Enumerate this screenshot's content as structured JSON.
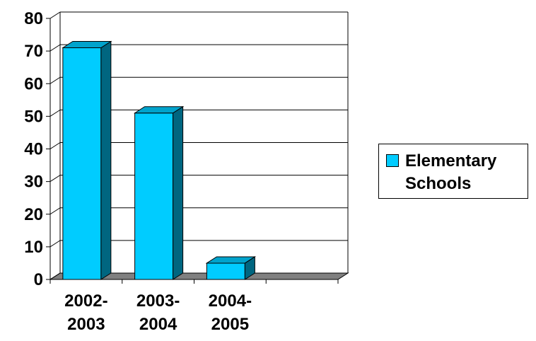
{
  "chart_data": {
    "type": "bar",
    "categories": [
      "2002-2003",
      "2003-2004",
      "2004-2005",
      ""
    ],
    "category_label_lines": [
      [
        "2002-",
        "2003"
      ],
      [
        "2003-",
        "2004"
      ],
      [
        "2004-",
        "2005"
      ],
      []
    ],
    "series": [
      {
        "name": "Elementary Schools",
        "values": [
          71,
          51,
          5,
          null
        ]
      }
    ],
    "title": "",
    "xlabel": "",
    "ylabel": "",
    "ylim": [
      0,
      80
    ],
    "yticks": [
      0,
      10,
      20,
      30,
      40,
      50,
      60,
      70,
      80
    ],
    "grid": true,
    "legend_position": "right",
    "style": "3d-column",
    "colors": {
      "bar_front": "#00CCFF",
      "bar_side": "#006680",
      "bar_top": "#00A3CC",
      "floor": "#808080",
      "grid": "#000000"
    }
  },
  "legend": {
    "label": "Elementary Schools"
  }
}
